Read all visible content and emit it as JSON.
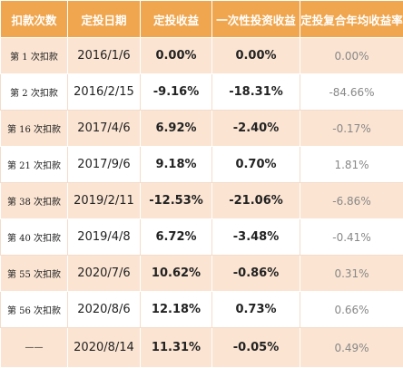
{
  "table": {
    "headers": [
      "扣款次数",
      "定投日期",
      "定投收益",
      "一次性投资收益",
      "定投复合年均收益率"
    ],
    "rows": [
      {
        "label": "第 1 次扣款",
        "date": "2016/1/6",
        "dca_return": "0.00%",
        "lump_return": "0.00%",
        "annualized": "0.00%"
      },
      {
        "label": "第 2 次扣款",
        "date": "2016/2/15",
        "dca_return": "-9.16%",
        "lump_return": "-18.31%",
        "annualized": "-84.66%"
      },
      {
        "label": "第 16 次扣款",
        "date": "2017/4/6",
        "dca_return": "6.92%",
        "lump_return": "-2.40%",
        "annualized": "-0.17%"
      },
      {
        "label": "第 21 次扣款",
        "date": "2017/9/6",
        "dca_return": "9.18%",
        "lump_return": "0.70%",
        "annualized": "1.81%"
      },
      {
        "label": "第 38 次扣款",
        "date": "2019/2/11",
        "dca_return": "-12.53%",
        "lump_return": "-21.06%",
        "annualized": "-6.86%"
      },
      {
        "label": "第 40 次扣款",
        "date": "2019/4/8",
        "dca_return": "6.72%",
        "lump_return": "-3.48%",
        "annualized": "-0.41%"
      },
      {
        "label": "第 55 次扣款",
        "date": "2020/7/6",
        "dca_return": "10.62%",
        "lump_return": "-0.86%",
        "annualized": "0.31%"
      },
      {
        "label": "第 56 次扣款",
        "date": "2020/8/6",
        "dca_return": "12.18%",
        "lump_return": "0.73%",
        "annualized": "0.66%"
      },
      {
        "label": "——",
        "date": "2020/8/14",
        "dca_return": "11.31%",
        "lump_return": "-0.05%",
        "annualized": "0.49%"
      }
    ]
  },
  "colors": {
    "header_bg": "#f0a64e",
    "row_shade": "#fbe4d2",
    "row_plain": "#ffffff",
    "muted_text": "#888888"
  }
}
